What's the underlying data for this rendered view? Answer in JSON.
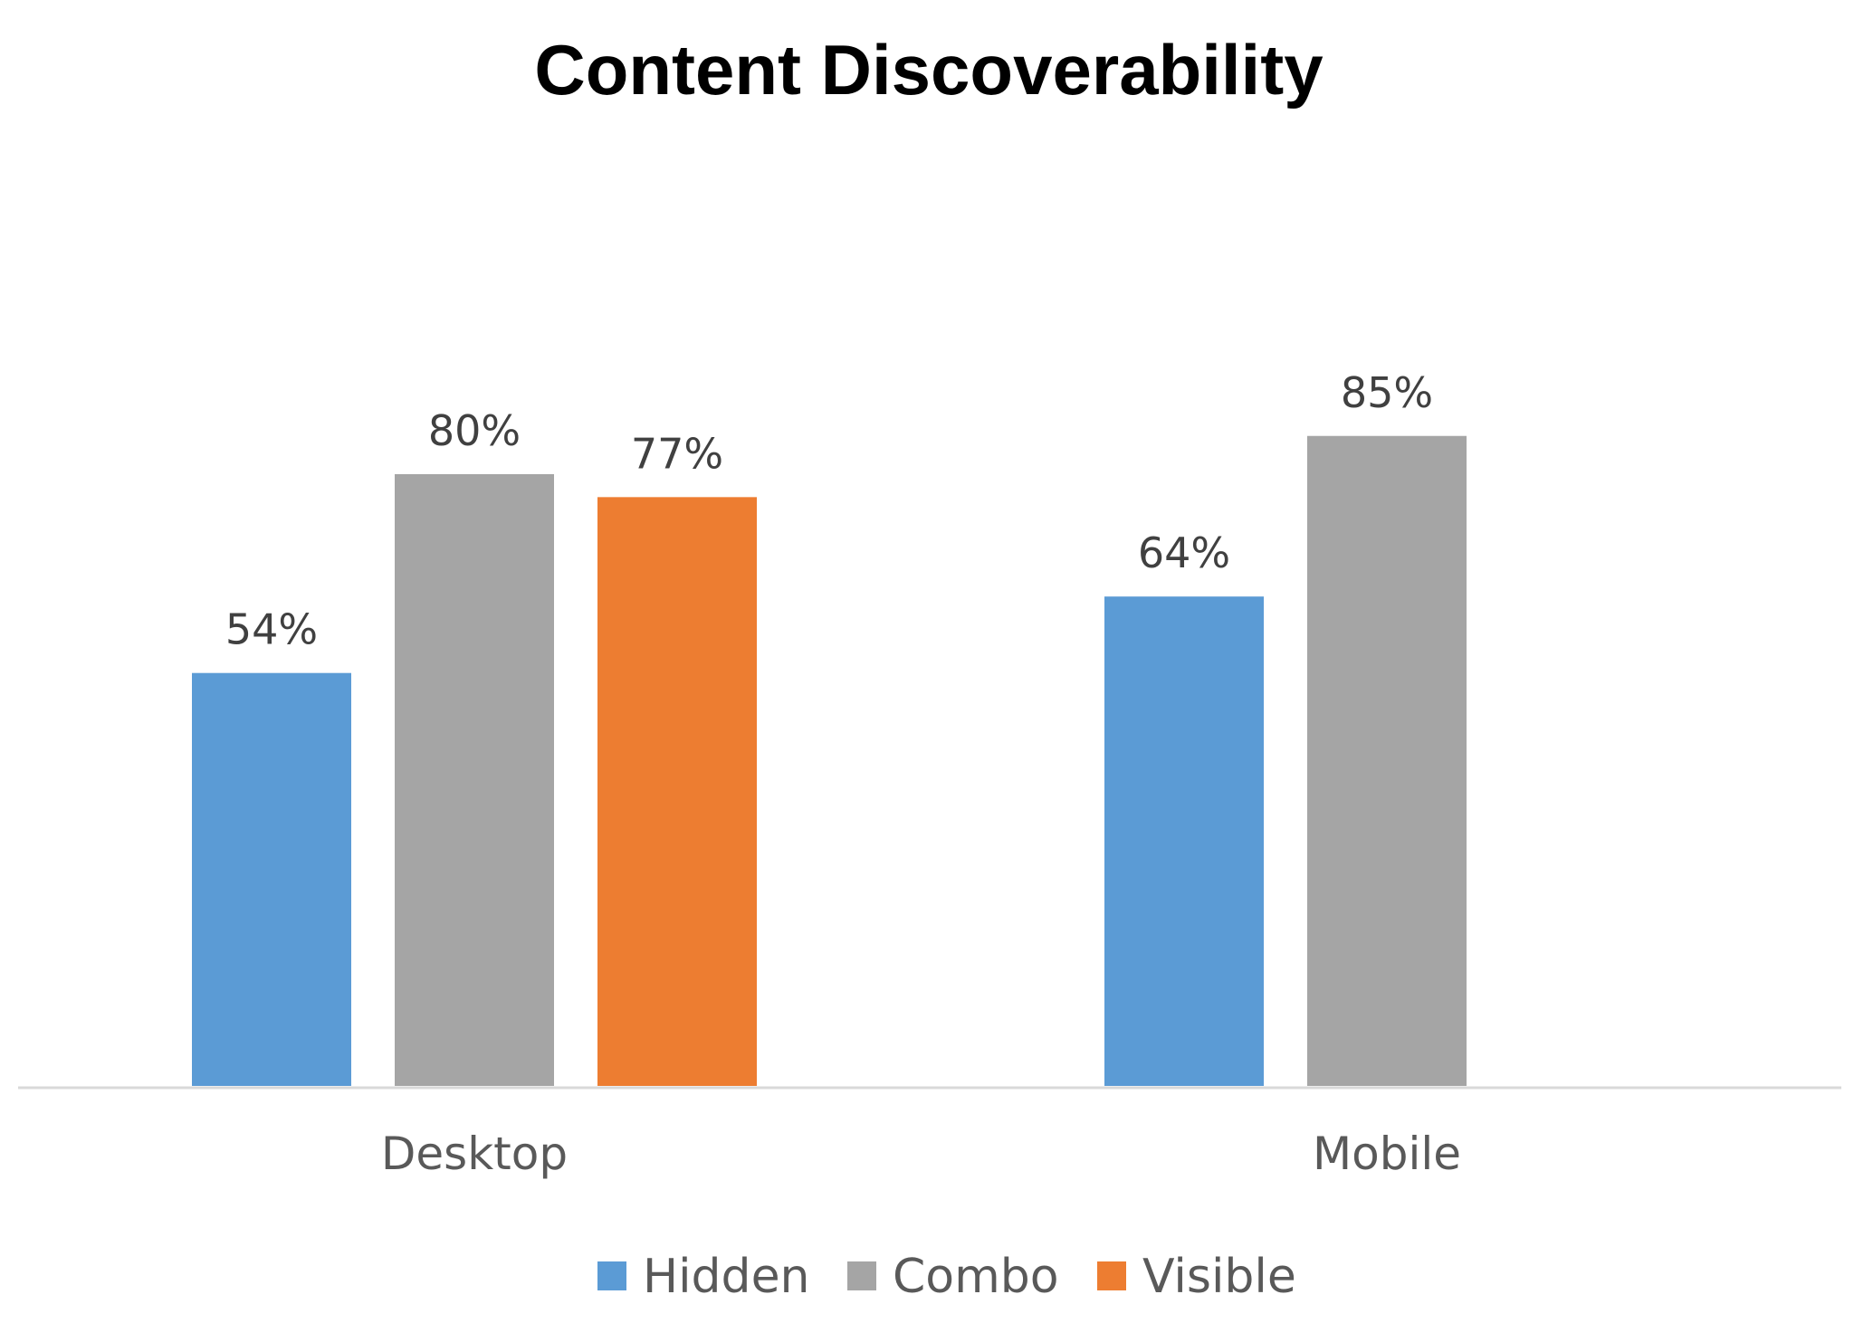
{
  "chart_data": {
    "type": "bar",
    "title": "Content Discoverability",
    "xlabel": "",
    "ylabel": "",
    "categories": [
      "Desktop",
      "Mobile"
    ],
    "series": [
      {
        "name": "Hidden",
        "color": "#5B9BD5",
        "values": [
          54,
          64
        ],
        "labels": [
          "54%",
          "64%"
        ]
      },
      {
        "name": "Combo",
        "color": "#A5A5A5",
        "values": [
          80,
          85
        ],
        "labels": [
          "80%",
          "85%"
        ]
      },
      {
        "name": "Visible",
        "color": "#ED7D31",
        "values": [
          77,
          null
        ],
        "labels": [
          "77%",
          null
        ]
      }
    ],
    "ylim": [
      0,
      100
    ],
    "grid": false,
    "legend": "bottom",
    "axis_color": "#D9D9D9"
  }
}
